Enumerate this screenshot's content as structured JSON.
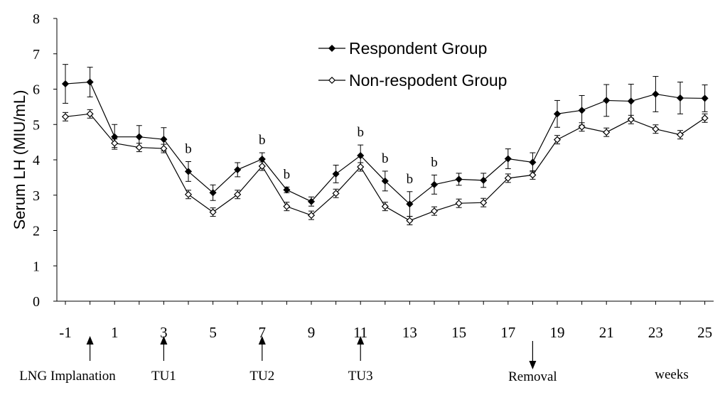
{
  "chart_data": {
    "type": "line",
    "ylabel": "Serum LH (MIU/mL)",
    "ylim": [
      0,
      8
    ],
    "yticks": [
      "0",
      "1",
      "2",
      "3",
      "4",
      "5",
      "6",
      "7",
      "8"
    ],
    "xticks": [
      "-1",
      "1",
      "3",
      "5",
      "7",
      "9",
      "11",
      "13",
      "15",
      "17",
      "19",
      "21",
      "23",
      "25"
    ],
    "xlabel": "weeks",
    "x": [
      -1,
      0,
      1,
      2,
      3,
      4,
      5,
      6,
      7,
      8,
      9,
      10,
      11,
      12,
      13,
      14,
      15,
      16,
      17,
      18,
      19,
      20,
      21,
      22,
      23,
      24,
      25
    ],
    "series": [
      {
        "name": "Respondent Group",
        "marker": "filled-diamond",
        "values": [
          6.15,
          6.2,
          4.65,
          4.65,
          4.58,
          3.67,
          3.07,
          3.72,
          4.02,
          3.15,
          2.82,
          3.6,
          4.12,
          3.4,
          2.75,
          3.3,
          3.45,
          3.42,
          4.03,
          3.93,
          5.3,
          5.4,
          5.68,
          5.66,
          5.86,
          5.75,
          5.74
        ],
        "errors": [
          0.55,
          0.42,
          0.35,
          0.32,
          0.33,
          0.28,
          0.22,
          0.2,
          0.18,
          0.08,
          0.13,
          0.25,
          0.3,
          0.28,
          0.35,
          0.27,
          0.17,
          0.2,
          0.28,
          0.27,
          0.38,
          0.42,
          0.45,
          0.48,
          0.5,
          0.45,
          0.38
        ]
      },
      {
        "name": "Non-respodent Group",
        "marker": "open-diamond",
        "values": [
          5.22,
          5.3,
          4.47,
          4.35,
          4.32,
          3.02,
          2.52,
          3.02,
          3.82,
          2.68,
          2.43,
          3.05,
          3.8,
          2.68,
          2.28,
          2.55,
          2.77,
          2.79,
          3.48,
          3.57,
          4.57,
          4.93,
          4.78,
          5.14,
          4.87,
          4.71,
          5.18
        ]
      }
    ],
    "significance_markers": [
      {
        "x": 4,
        "label": "b"
      },
      {
        "x": 7,
        "label": "b"
      },
      {
        "x": 8,
        "label": "b"
      },
      {
        "x": 11,
        "label": "b"
      },
      {
        "x": 12,
        "label": "b"
      },
      {
        "x": 13,
        "label": "b"
      },
      {
        "x": 14,
        "label": "b"
      }
    ],
    "event_markers": [
      {
        "x": 0,
        "label": "LNG Implanation",
        "direction": "up"
      },
      {
        "x": 3,
        "label": "TU1",
        "direction": "up"
      },
      {
        "x": 7,
        "label": "TU2",
        "direction": "up"
      },
      {
        "x": 11,
        "label": "TU3",
        "direction": "up"
      },
      {
        "x": 18,
        "label": "Removal",
        "direction": "down"
      }
    ],
    "legend_position": "top-center",
    "grid": false
  }
}
